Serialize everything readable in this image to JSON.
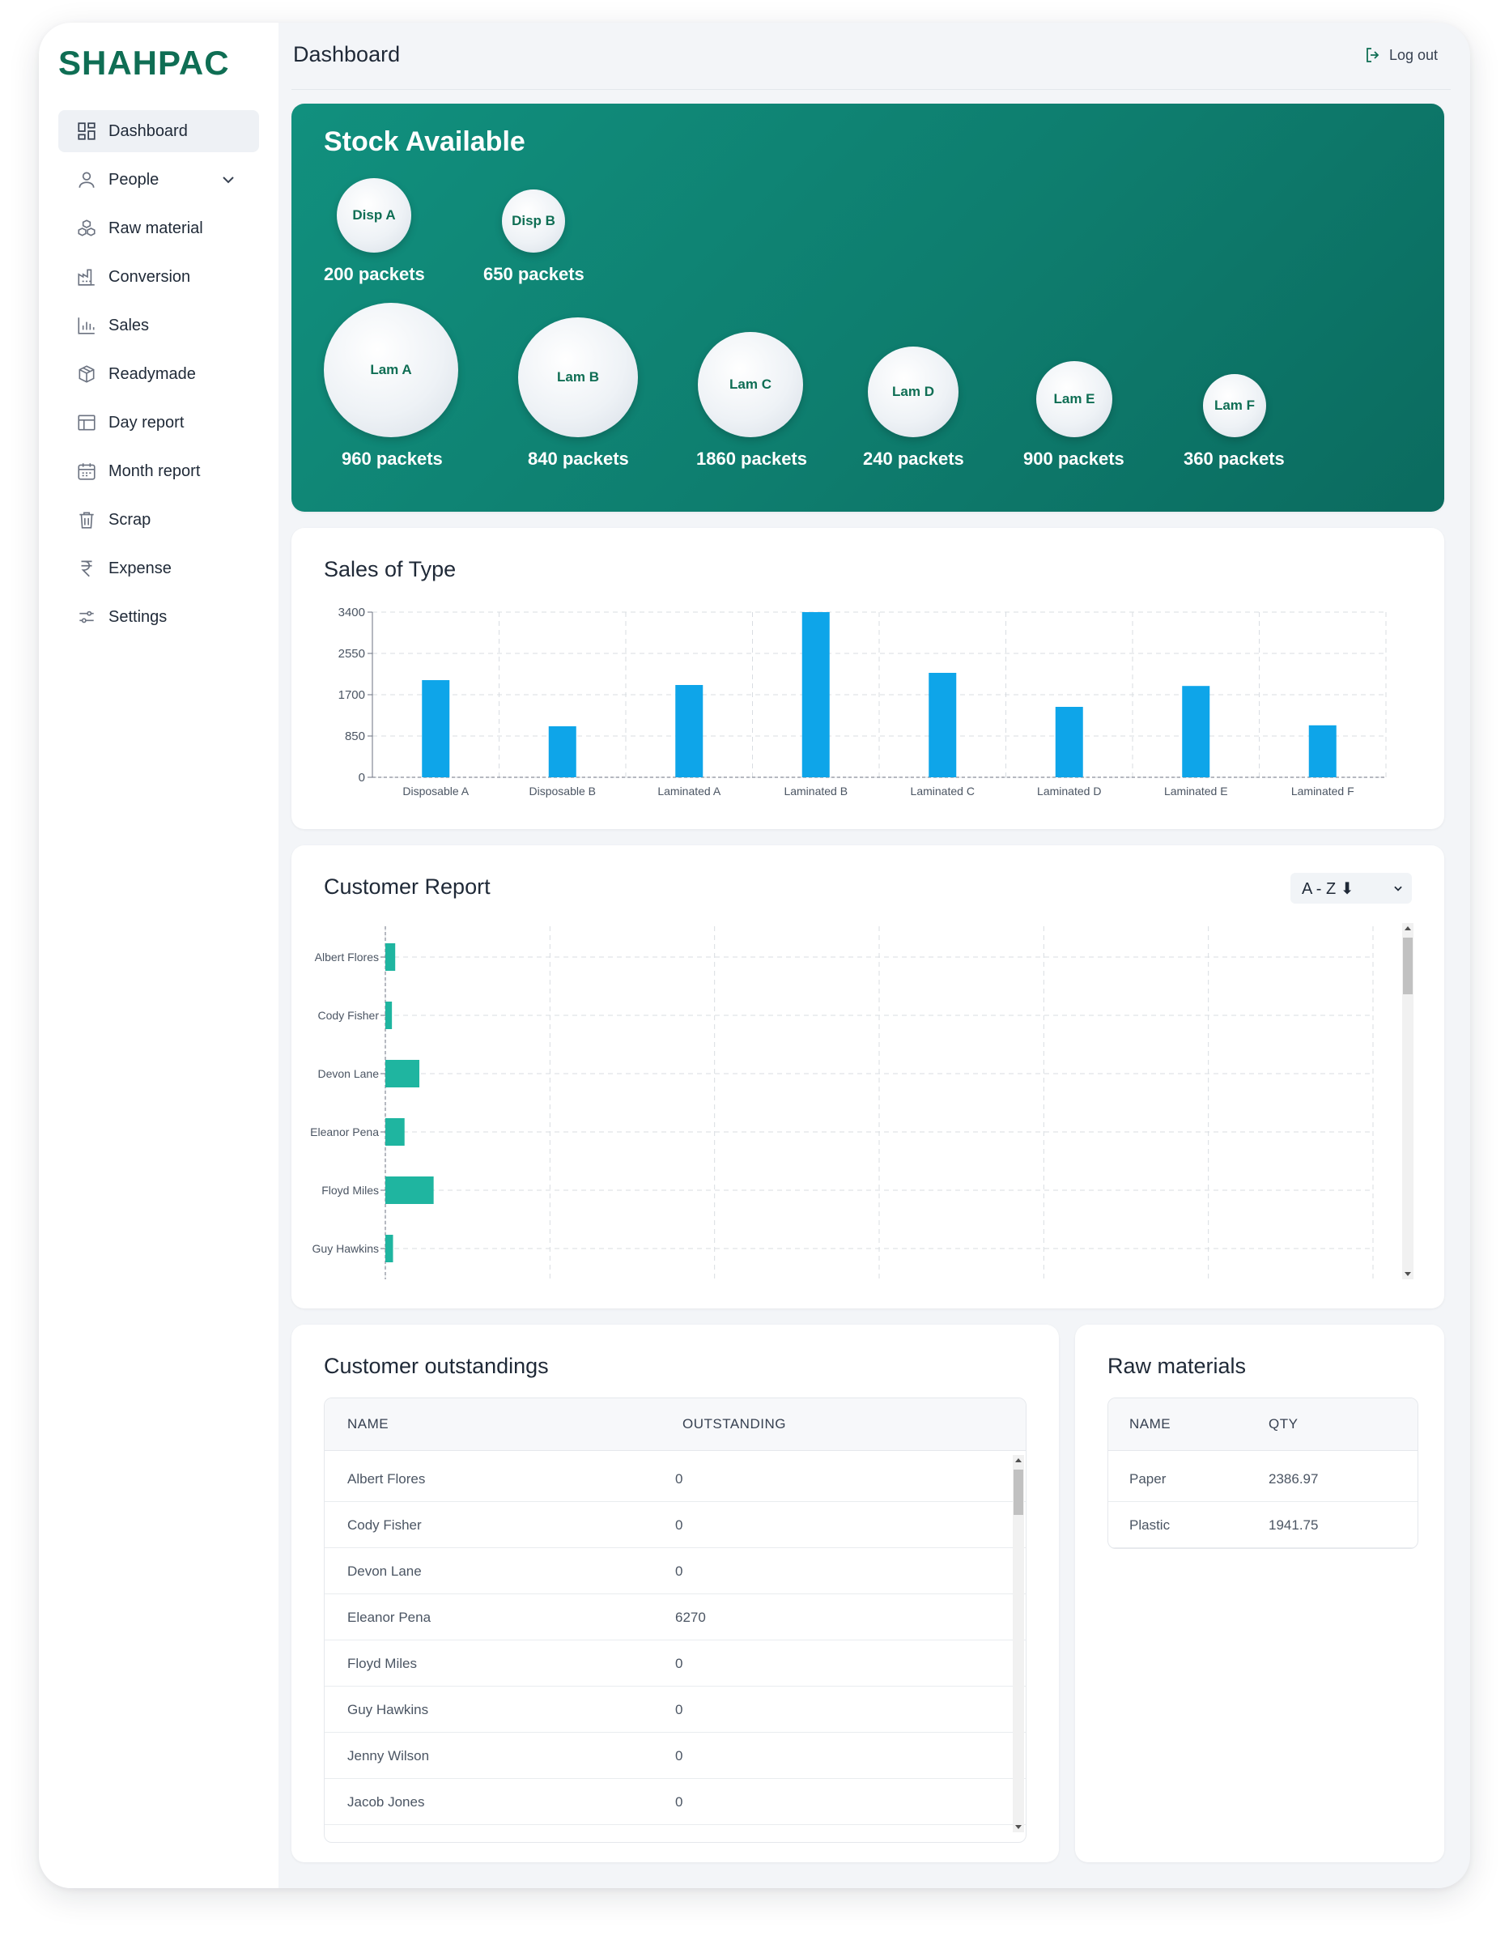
{
  "brand": "SHAHPAC",
  "header": {
    "title": "Dashboard",
    "logout_label": "Log out"
  },
  "sidebar": {
    "items": [
      {
        "label": "Dashboard",
        "icon": "dashboard-icon",
        "active": true
      },
      {
        "label": "People",
        "icon": "user-icon"
      },
      {
        "label": "Raw material",
        "icon": "boxes-icon"
      },
      {
        "label": "Conversion",
        "icon": "factory-icon"
      },
      {
        "label": "Sales",
        "icon": "bar-chart-icon"
      },
      {
        "label": "Readymade",
        "icon": "package-icon"
      },
      {
        "label": "Day report",
        "icon": "table-icon"
      },
      {
        "label": "Month report",
        "icon": "calendar-icon"
      },
      {
        "label": "Scrap",
        "icon": "trash-icon"
      },
      {
        "label": "Expense",
        "icon": "rupee-icon"
      },
      {
        "label": "Settings",
        "icon": "sliders-icon"
      }
    ]
  },
  "stock": {
    "title": "Stock Available",
    "items": [
      {
        "name": "Disp A",
        "value": "200 packets"
      },
      {
        "name": "Disp B",
        "value": "650 packets"
      },
      {
        "name": "Lam A",
        "value": "960 packets"
      },
      {
        "name": "Lam B",
        "value": "840 packets"
      },
      {
        "name": "Lam C",
        "value": "1860 packets"
      },
      {
        "name": "Lam D",
        "value": "240 packets"
      },
      {
        "name": "Lam E",
        "value": "900 packets"
      },
      {
        "name": "Lam F",
        "value": "360 packets"
      }
    ]
  },
  "sales_chart": {
    "title": "Sales of Type"
  },
  "customer_report": {
    "title": "Customer Report",
    "sort_value": "A - Z ⬇"
  },
  "chart_data": [
    {
      "type": "bar",
      "title": "Sales of Type",
      "categories": [
        "Disposable A",
        "Disposable B",
        "Laminated A",
        "Laminated B",
        "Laminated C",
        "Laminated D",
        "Laminated E",
        "Laminated F"
      ],
      "values": [
        2000,
        1050,
        1900,
        3400,
        2150,
        1450,
        1880,
        1070
      ],
      "yticks": [
        0,
        850,
        1700,
        2550,
        3400
      ],
      "ylim": [
        0,
        3400
      ],
      "bar_color": "#0ea5e9",
      "grid": true
    },
    {
      "type": "bar",
      "orientation": "horizontal",
      "title": "Customer Report",
      "categories": [
        "Albert Flores",
        "Cody Fisher",
        "Devon Lane",
        "Eleanor Pena",
        "Floyd Miles",
        "Guy Hawkins"
      ],
      "values": [
        180,
        120,
        620,
        350,
        880,
        140
      ],
      "xlim": [
        0,
        18000
      ],
      "bar_color": "#1fb5a0",
      "grid": true
    }
  ],
  "outstandings": {
    "title": "Customer outstandings",
    "columns": [
      "NAME",
      "OUTSTANDING"
    ],
    "rows": [
      [
        "Albert Flores",
        "0"
      ],
      [
        "Cody Fisher",
        "0"
      ],
      [
        "Devon Lane",
        "0"
      ],
      [
        "Eleanor Pena",
        "6270"
      ],
      [
        "Floyd Miles",
        "0"
      ],
      [
        "Guy Hawkins",
        "0"
      ],
      [
        "Jenny Wilson",
        "0"
      ],
      [
        "Jacob Jones",
        "0"
      ]
    ]
  },
  "raw_materials": {
    "title": "Raw materials",
    "columns": [
      "NAME",
      "QTY"
    ],
    "rows": [
      [
        "Paper",
        "2386.97"
      ],
      [
        "Plastic",
        "1941.75"
      ]
    ]
  }
}
